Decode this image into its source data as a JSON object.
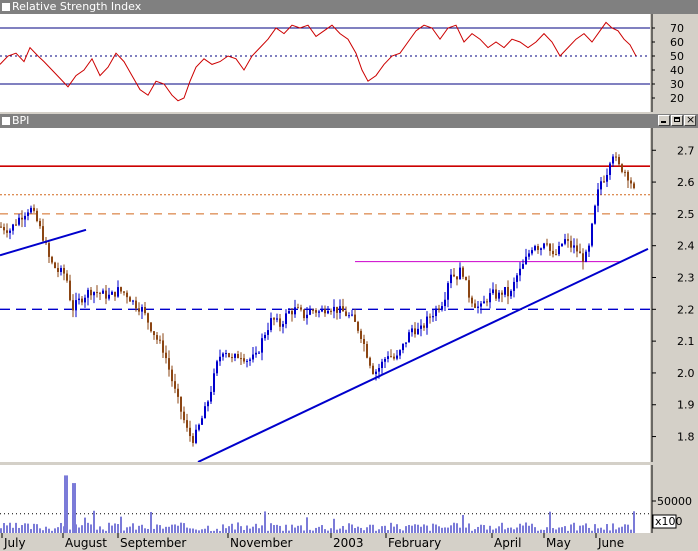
{
  "rsi_panel": {
    "title": "Relative Strength Index",
    "y_ticks": [
      70,
      60,
      50,
      40,
      30,
      20
    ],
    "levels": [
      70,
      50,
      30
    ]
  },
  "price_panel": {
    "title": "BPI",
    "y_ticks": [
      "2.7",
      "2.6",
      "2.5",
      "2.4",
      "2.3",
      "2.2",
      "2.1",
      "2.0",
      "1.9",
      "1.8"
    ]
  },
  "volume_panel": {
    "y_tick": "50000",
    "multiplier": "x100"
  },
  "months": [
    "July",
    "August",
    "September",
    "November",
    "2003",
    "February",
    "April",
    "May",
    "June"
  ],
  "chart_data": [
    {
      "type": "line",
      "name": "RSI",
      "title": "Relative Strength Index",
      "ylim": [
        10,
        80
      ],
      "reference_lines": [
        70,
        50,
        30
      ],
      "x": [
        0,
        8,
        16,
        24,
        30,
        38,
        44,
        52,
        60,
        68,
        76,
        84,
        92,
        100,
        108,
        116,
        124,
        132,
        140,
        148,
        156,
        164,
        172,
        178,
        184,
        190,
        196,
        204,
        212,
        220,
        228,
        236,
        244,
        252,
        260,
        268,
        276,
        284,
        292,
        300,
        308,
        316,
        324,
        332,
        340,
        348,
        356,
        362,
        368,
        376,
        384,
        392,
        400,
        408,
        416,
        424,
        432,
        440,
        448,
        456,
        464,
        472,
        480,
        488,
        496,
        504,
        512,
        520,
        528,
        536,
        544,
        552,
        560,
        568,
        576,
        584,
        592,
        600,
        606,
        612,
        618,
        624,
        630,
        636
      ],
      "values": [
        44,
        50,
        52,
        46,
        56,
        50,
        46,
        40,
        34,
        28,
        36,
        40,
        48,
        36,
        42,
        52,
        46,
        36,
        26,
        22,
        32,
        30,
        22,
        18,
        20,
        32,
        42,
        48,
        44,
        46,
        50,
        48,
        40,
        50,
        56,
        62,
        70,
        66,
        72,
        70,
        72,
        64,
        68,
        72,
        66,
        62,
        52,
        40,
        32,
        36,
        44,
        50,
        52,
        60,
        68,
        72,
        70,
        62,
        70,
        72,
        60,
        66,
        62,
        56,
        60,
        56,
        62,
        60,
        56,
        60,
        66,
        60,
        50,
        56,
        62,
        66,
        60,
        68,
        74,
        70,
        68,
        62,
        58,
        50
      ]
    },
    {
      "type": "candlestick",
      "name": "BPI",
      "ylim": [
        1.72,
        2.77
      ],
      "x_ticks": [
        "July",
        "August",
        "September",
        "November",
        "2003",
        "February",
        "April",
        "May",
        "June"
      ],
      "close_path_x": [
        0,
        10,
        20,
        30,
        38,
        44,
        50,
        58,
        66,
        72,
        80,
        90,
        100,
        110,
        118,
        126,
        134,
        142,
        150,
        158,
        164,
        170,
        176,
        182,
        188,
        194,
        200,
        206,
        212,
        218,
        224,
        232,
        240,
        248,
        256,
        264,
        272,
        280,
        288,
        296,
        304,
        312,
        320,
        328,
        336,
        344,
        352,
        360,
        368,
        374,
        380,
        388,
        396,
        404,
        412,
        420,
        428,
        436,
        444,
        450,
        456,
        462,
        468,
        474,
        480,
        486,
        492,
        498,
        504,
        510,
        516,
        522,
        528,
        534,
        540,
        546,
        552,
        558,
        564,
        570,
        576,
        582,
        588,
        594,
        600,
        606,
        612,
        618,
        624,
        630,
        636
      ],
      "close_path_y": [
        2.46,
        2.45,
        2.49,
        2.52,
        2.47,
        2.42,
        2.35,
        2.32,
        2.31,
        2.2,
        2.23,
        2.26,
        2.25,
        2.24,
        2.26,
        2.25,
        2.22,
        2.2,
        2.15,
        2.1,
        2.07,
        2.0,
        1.93,
        1.87,
        1.81,
        1.79,
        1.84,
        1.89,
        1.96,
        2.04,
        2.08,
        2.04,
        2.06,
        2.04,
        2.05,
        2.12,
        2.17,
        2.15,
        2.19,
        2.2,
        2.18,
        2.2,
        2.19,
        2.21,
        2.2,
        2.19,
        2.17,
        2.13,
        2.05,
        2.0,
        2.02,
        2.06,
        2.04,
        2.09,
        2.14,
        2.13,
        2.17,
        2.2,
        2.23,
        2.32,
        2.3,
        2.33,
        2.25,
        2.22,
        2.2,
        2.23,
        2.25,
        2.24,
        2.26,
        2.24,
        2.3,
        2.33,
        2.37,
        2.41,
        2.39,
        2.43,
        2.36,
        2.38,
        2.42,
        2.4,
        2.39,
        2.36,
        2.37,
        2.5,
        2.6,
        2.62,
        2.7,
        2.65,
        2.64,
        2.61,
        2.55
      ],
      "horizontal_levels": [
        {
          "value": 2.65,
          "style": "solid red"
        },
        {
          "value": 2.56,
          "style": "dotted orange"
        },
        {
          "value": 2.5,
          "style": "dashed orange"
        },
        {
          "value": 2.35,
          "style": "solid magenta segment"
        },
        {
          "value": 2.2,
          "style": "dashed blue"
        }
      ],
      "trendlines": [
        {
          "from": [
            0,
            2.37
          ],
          "to": [
            86,
            2.45
          ],
          "color": "blue"
        },
        {
          "from": [
            198,
            1.72
          ],
          "to": [
            648,
            2.39
          ],
          "color": "blue"
        }
      ]
    },
    {
      "type": "bar",
      "name": "Volume",
      "ylim": [
        0,
        1000
      ],
      "unit_multiplier": 100,
      "spikes": [
        {
          "x": 66,
          "value": 900
        },
        {
          "x": 74,
          "value": 780
        }
      ],
      "baseline_level": 150
    }
  ],
  "colors": {
    "background": "#ffffff",
    "frame": "#d4d0c8",
    "title_bar": "#808080",
    "rsi_line": "#cc0000",
    "level_line": "#000080",
    "candle_up": "#0000cc",
    "candle_down": "#8b4513",
    "trendline": "#0000cc",
    "resistance": "#cc0000",
    "volume": "#7b7bd8"
  }
}
